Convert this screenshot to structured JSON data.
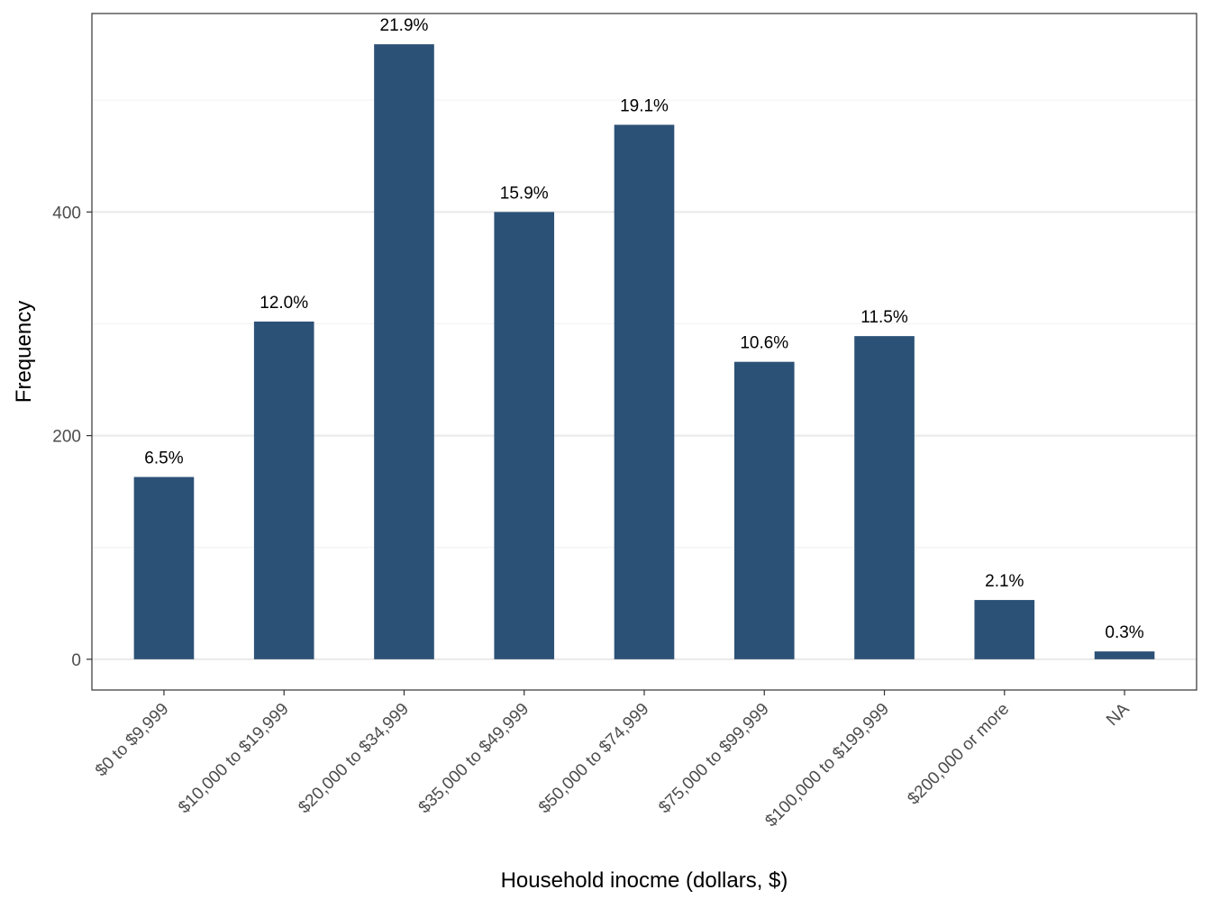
{
  "colors": {
    "bar": "#2c5177",
    "panel_border": "#333333",
    "grid_major": "#ebebeb",
    "grid_minor": "#f3f3f3",
    "tick_text": "#4d4d4d"
  },
  "chart_data": {
    "type": "bar",
    "title": "",
    "xlabel": "Household inocme (dollars, $)",
    "ylabel": "Frequency",
    "categories": [
      "$0 to $9,999",
      "$10,000 to $19,999",
      "$20,000 to $34,999",
      "$35,000 to $49,999",
      "$50,000 to $74,999",
      "$75,000 to $99,999",
      "$100,000 to $199,999",
      "$200,000 or more",
      "NA"
    ],
    "values": [
      163,
      302,
      550,
      400,
      478,
      266,
      289,
      53,
      7
    ],
    "data_labels": [
      "6.5%",
      "12.0%",
      "21.9%",
      "15.9%",
      "19.1%",
      "10.6%",
      "11.5%",
      "2.1%",
      "0.3%"
    ],
    "ylim": [
      -27.5,
      577.5
    ],
    "yticks": [
      0,
      200,
      400
    ],
    "ytick_labels": [
      "0",
      "200",
      "400"
    ],
    "y_minor_gridlines": [
      100,
      300,
      500
    ],
    "grid": true,
    "legend": "none"
  }
}
